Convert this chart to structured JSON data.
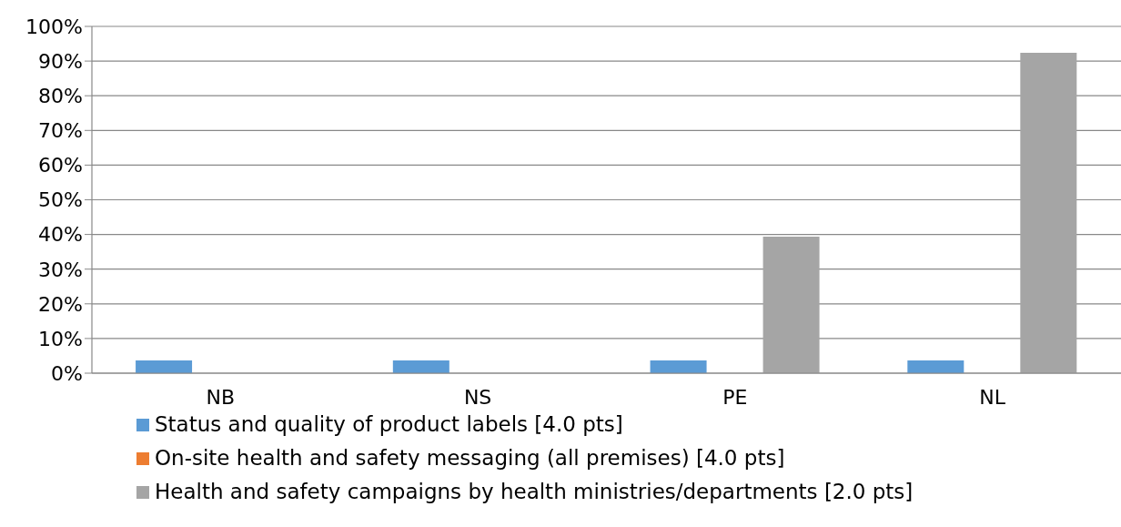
{
  "chart_data": {
    "type": "bar",
    "categories": [
      "NB",
      "NS",
      "PE",
      "NL"
    ],
    "series": [
      {
        "name": "Status and quality of product labels [4.0 pts]",
        "color": "#5b9bd5",
        "values": [
          3.7,
          3.7,
          3.7,
          3.7
        ]
      },
      {
        "name": "On-site health and safety messaging (all premises) [4.0 pts]",
        "color": "#ed7d31",
        "values": [
          0,
          0,
          0,
          0
        ]
      },
      {
        "name": "Health and safety campaigns by health ministries/departments [2.0 pts]",
        "color": "#a5a5a5",
        "values": [
          0,
          0,
          39.4,
          92.4
        ]
      }
    ],
    "ylim": [
      0,
      100
    ],
    "yticks": [
      {
        "value": 0,
        "label": "0%"
      },
      {
        "value": 10,
        "label": "10%"
      },
      {
        "value": 20,
        "label": "20%"
      },
      {
        "value": 30,
        "label": "30%"
      },
      {
        "value": 40,
        "label": "40%"
      },
      {
        "value": 50,
        "label": "50%"
      },
      {
        "value": 60,
        "label": "60%"
      },
      {
        "value": 70,
        "label": "70%"
      },
      {
        "value": 80,
        "label": "80%"
      },
      {
        "value": 90,
        "label": "90%"
      },
      {
        "value": 100,
        "label": "100%"
      }
    ],
    "grid": "y",
    "legend": "bottom"
  }
}
